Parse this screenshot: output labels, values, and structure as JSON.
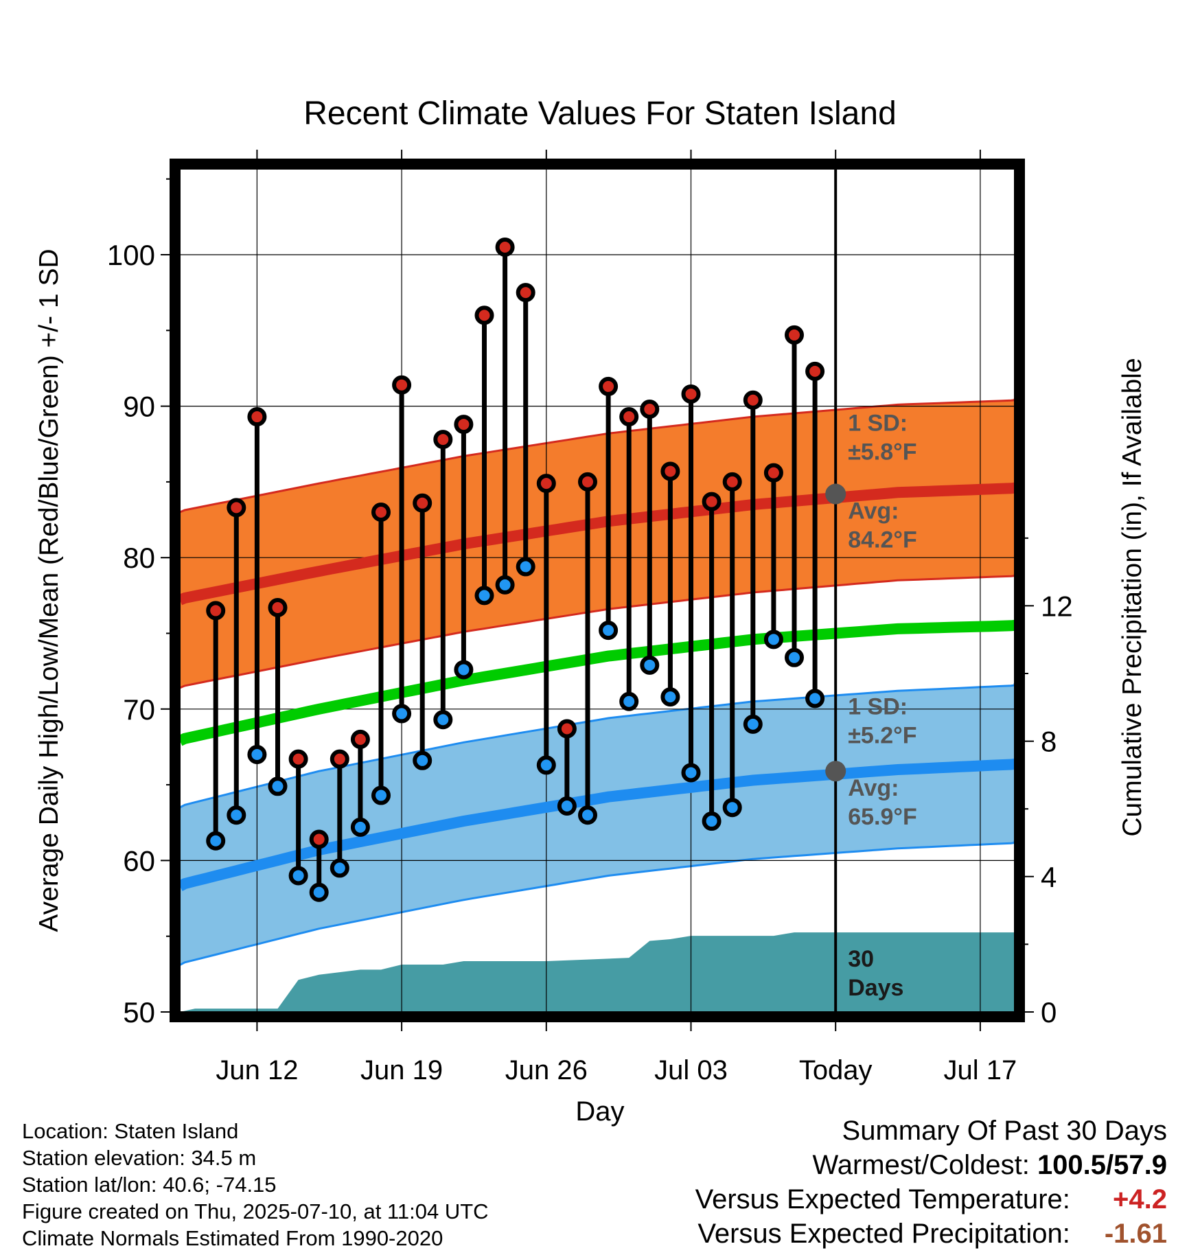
{
  "title": "Recent Climate Values For Staten Island",
  "info": {
    "location": "Location: Staten Island",
    "elevation": "Station elevation: 34.5 m",
    "latlon": "Station lat/lon: 40.6; -74.15",
    "created": "Figure created on Thu, 2025-07-10, at 11:04 UTC",
    "normals": "Climate Normals Estimated From 1990-2020"
  },
  "summary": {
    "heading": "Summary Of Past 30 Days",
    "warmest_label": "Warmest/Coldest:",
    "warmest_value": "100.5/57.9",
    "temp_label": "Versus Expected Temperature:",
    "temp_value": "+4.2",
    "precip_label": "Versus Expected Precipitation:",
    "precip_value": "-1.61"
  },
  "colors": {
    "high_band": "#f47c2c",
    "high_line": "#d42a1e",
    "low_band": "#82c0e6",
    "low_line": "#1e8cf0",
    "mean_line": "#00cc00",
    "precip": "#469ca4",
    "high_dot": "#d42a1e",
    "low_dot": "#2196f3",
    "annotation": "#555555"
  },
  "chart_data": {
    "type": "line",
    "title": "Recent Climate Values For Staten Island",
    "xlabel": "Day",
    "ylabel": "Average Daily High/Low/Mean (Red/Blue/Green) +/- 1 SD",
    "ylabel_right": "Cumulative Precipitation (in), If Available",
    "xlim": [
      "2025-06-08",
      "2025-07-21"
    ],
    "ylim": [
      50,
      105
    ],
    "ylim_right": [
      0,
      24
    ],
    "x_ticks": [
      "2025-06-12",
      "2025-06-19",
      "2025-06-26",
      "2025-07-03",
      "2025-07-10",
      "2025-07-17"
    ],
    "x_tick_labels": [
      "Jun 12",
      "Jun 19",
      "Jun 26",
      "Jul 03",
      "Today",
      "Jul 17"
    ],
    "y_ticks": [
      50,
      60,
      70,
      80,
      90,
      100
    ],
    "y_ticks_right": [
      0,
      4,
      8,
      12
    ],
    "today": "2025-07-10",
    "days": [
      "2025-06-10",
      "2025-06-11",
      "2025-06-12",
      "2025-06-13",
      "2025-06-14",
      "2025-06-15",
      "2025-06-16",
      "2025-06-17",
      "2025-06-18",
      "2025-06-19",
      "2025-06-20",
      "2025-06-21",
      "2025-06-22",
      "2025-06-23",
      "2025-06-24",
      "2025-06-25",
      "2025-06-26",
      "2025-06-27",
      "2025-06-28",
      "2025-06-29",
      "2025-06-30",
      "2025-07-01",
      "2025-07-02",
      "2025-07-03",
      "2025-07-04",
      "2025-07-05",
      "2025-07-06",
      "2025-07-07",
      "2025-07-08",
      "2025-07-09"
    ],
    "highs": [
      76.5,
      83.3,
      89.3,
      76.7,
      66.7,
      61.4,
      66.7,
      68.0,
      83.0,
      91.4,
      83.6,
      87.8,
      88.8,
      96.0,
      100.5,
      97.5,
      84.9,
      68.7,
      85.0,
      91.3,
      89.3,
      89.8,
      85.7,
      90.8,
      83.7,
      85.0,
      90.4,
      85.6,
      94.7,
      92.3
    ],
    "lows": [
      61.3,
      63.0,
      67.0,
      64.9,
      59.0,
      57.9,
      59.5,
      62.2,
      64.3,
      69.7,
      66.6,
      69.3,
      72.6,
      77.5,
      78.2,
      79.4,
      66.3,
      63.6,
      63.0,
      75.2,
      70.5,
      72.9,
      70.8,
      65.8,
      62.6,
      63.5,
      69.0,
      74.6,
      73.4,
      70.7
    ],
    "normal_x": [
      "2025-06-08",
      "2025-06-15",
      "2025-06-22",
      "2025-06-29",
      "2025-07-06",
      "2025-07-13",
      "2025-07-21"
    ],
    "normal_high": [
      77.2,
      79.1,
      80.9,
      82.4,
      83.5,
      84.3,
      84.7
    ],
    "normal_low": [
      58.3,
      60.7,
      62.6,
      64.2,
      65.3,
      66.0,
      66.5
    ],
    "normal_mean": [
      67.9,
      70.0,
      71.9,
      73.5,
      74.6,
      75.3,
      75.6
    ],
    "high_sd": 5.8,
    "low_sd": 5.2,
    "precip_x": [
      "2025-06-08",
      "2025-06-09",
      "2025-06-13",
      "2025-06-14",
      "2025-06-15",
      "2025-06-17",
      "2025-06-18",
      "2025-06-19",
      "2025-06-21",
      "2025-06-22",
      "2025-06-26",
      "2025-06-28",
      "2025-06-30",
      "2025-07-01",
      "2025-07-02",
      "2025-07-03",
      "2025-07-07",
      "2025-07-08",
      "2025-07-21"
    ],
    "precip_cum": [
      0,
      0.1,
      0.1,
      0.95,
      1.1,
      1.25,
      1.25,
      1.4,
      1.4,
      1.5,
      1.5,
      1.55,
      1.6,
      2.1,
      2.15,
      2.25,
      2.25,
      2.35,
      2.35
    ],
    "annotations": {
      "high_sd_label": "1 SD:",
      "high_sd_value": "±5.8°F",
      "high_avg_label": "Avg:",
      "high_avg_value": "84.2°F",
      "high_avg": 84.2,
      "low_sd_label": "1 SD:",
      "low_sd_value": "±5.2°F",
      "low_avg_label": "Avg:",
      "low_avg_value": "65.9°F",
      "low_avg": 65.9,
      "precip_label_1": "30",
      "precip_label_2": "Days"
    },
    "grid": true
  }
}
